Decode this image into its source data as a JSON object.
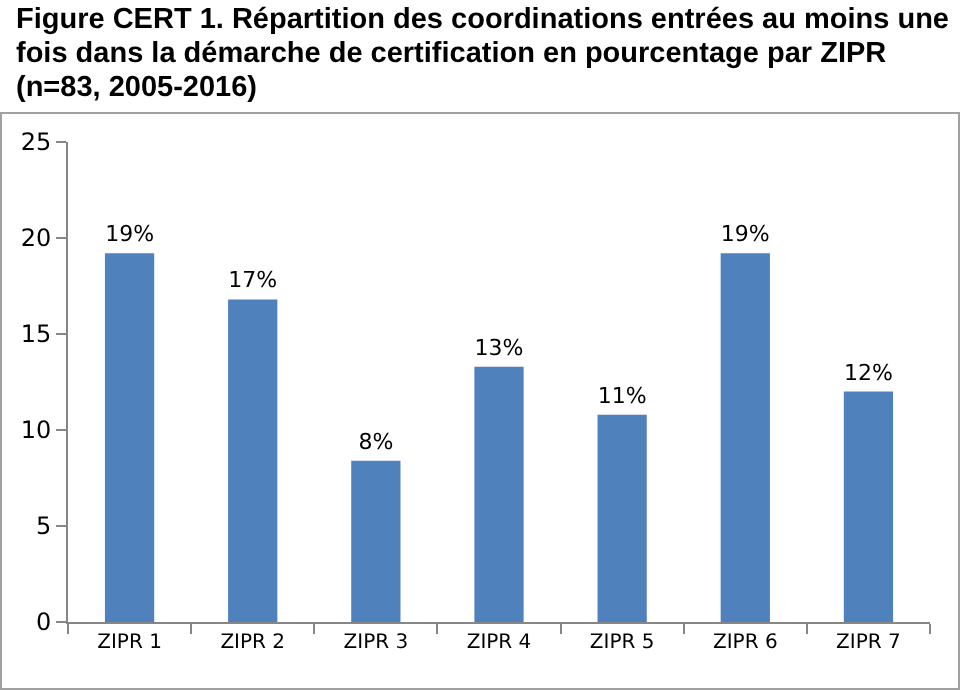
{
  "chart_data": {
    "type": "bar",
    "title": "Figure CERT 1. Répartition des coordinations entrées au moins une fois dans la démarche de certification en pourcentage par ZIPR (n=83, 2005-2016)",
    "categories": [
      "ZIPR 1",
      "ZIPR 2",
      "ZIPR 3",
      "ZIPR 4",
      "ZIPR 5",
      "ZIPR 6",
      "ZIPR 7"
    ],
    "values": [
      19.2,
      16.8,
      8.4,
      13.3,
      10.8,
      19.2,
      12.0
    ],
    "value_labels": [
      "19%",
      "17%",
      "8%",
      "13%",
      "11%",
      "19%",
      "12%"
    ],
    "color": "#4f81bd",
    "ylim": [
      0,
      25
    ],
    "yticks": [
      0,
      5,
      10,
      15,
      20,
      25
    ],
    "grid": false,
    "legend": false
  }
}
